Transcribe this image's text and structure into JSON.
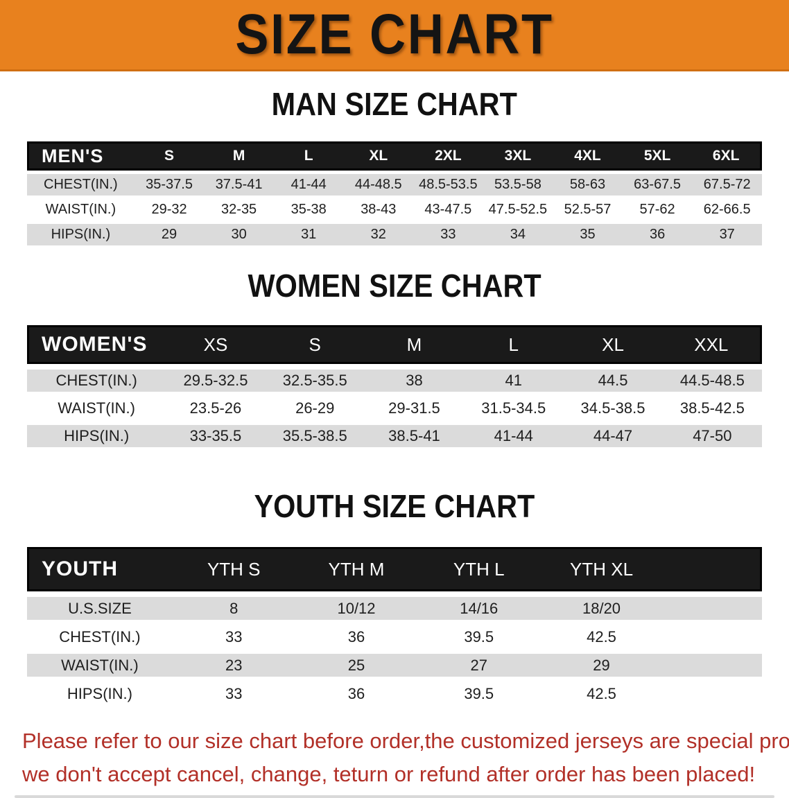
{
  "banner": {
    "title": "SIZE CHART",
    "bg_color": "#E8811E",
    "text_color": "#141414"
  },
  "colors": {
    "table_header_bg": "#1a1a1a",
    "row_stripe": "#dbdbdb",
    "disclaimer_red": "#B23028"
  },
  "sections": [
    {
      "heading": "MAN SIZE CHART",
      "corner": "MEN'S",
      "sizes": [
        "S",
        "M",
        "L",
        "XL",
        "2XL",
        "3XL",
        "4XL",
        "5XL",
        "6XL"
      ],
      "rows": [
        {
          "label": "CHEST(IN.)",
          "values": [
            "35-37.5",
            "37.5-41",
            "41-44",
            "44-48.5",
            "48.5-53.5",
            "53.5-58",
            "58-63",
            "63-67.5",
            "67.5-72"
          ]
        },
        {
          "label": "WAIST(IN.)",
          "values": [
            "29-32",
            "32-35",
            "35-38",
            "38-43",
            "43-47.5",
            "47.5-52.5",
            "52.5-57",
            "57-62",
            "62-66.5"
          ]
        },
        {
          "label": "HIPS(IN.)",
          "values": [
            "29",
            "30",
            "31",
            "32",
            "33",
            "34",
            "35",
            "36",
            "37"
          ]
        }
      ]
    },
    {
      "heading": "WOMEN SIZE CHART",
      "corner": "WOMEN'S",
      "sizes": [
        "XS",
        "S",
        "M",
        "L",
        "XL",
        "XXL"
      ],
      "rows": [
        {
          "label": "CHEST(IN.)",
          "values": [
            "29.5-32.5",
            "32.5-35.5",
            "38",
            "41",
            "44.5",
            "44.5-48.5"
          ]
        },
        {
          "label": "WAIST(IN.)",
          "values": [
            "23.5-26",
            "26-29",
            "29-31.5",
            "31.5-34.5",
            "34.5-38.5",
            "38.5-42.5"
          ]
        },
        {
          "label": "HIPS(IN.)",
          "values": [
            "33-35.5",
            "35.5-38.5",
            "38.5-41",
            "41-44",
            "44-47",
            "47-50"
          ]
        }
      ]
    },
    {
      "heading": "YOUTH SIZE CHART",
      "corner": "YOUTH",
      "sizes": [
        "YTH S",
        "YTH M",
        "YTH L",
        "YTH XL"
      ],
      "trailing_filler": true,
      "rows": [
        {
          "label": "U.S.SIZE",
          "values": [
            "8",
            "10/12",
            "14/16",
            "18/20"
          ]
        },
        {
          "label": "CHEST(IN.)",
          "values": [
            "33",
            "36",
            "39.5",
            "42.5"
          ]
        },
        {
          "label": "WAIST(IN.)",
          "values": [
            "23",
            "25",
            "27",
            "29"
          ]
        },
        {
          "label": "HIPS(IN.)",
          "values": [
            "33",
            "36",
            "39.5",
            "42.5"
          ]
        }
      ]
    }
  ],
  "disclaimer": {
    "line1": "Please refer to our size chart before order,the customized jerseys are special products,",
    "line2": "we don't accept cancel, change, teturn or refund after order has been placed!"
  }
}
